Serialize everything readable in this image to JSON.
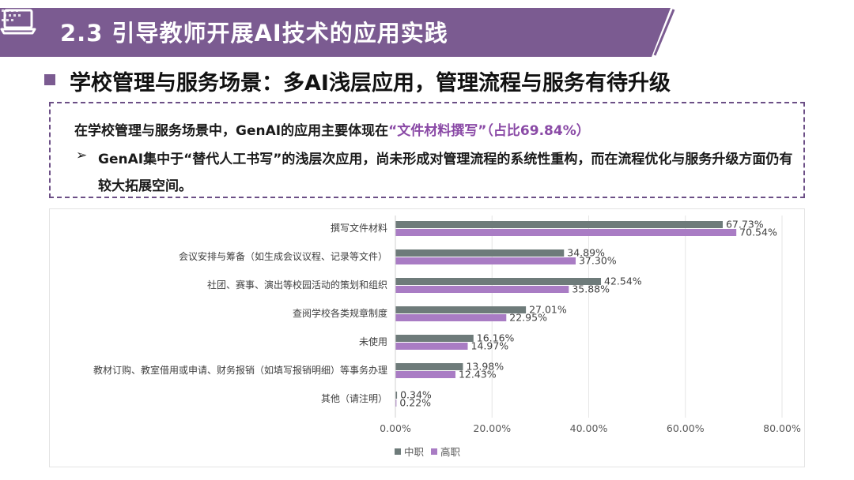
{
  "header": {
    "title": "2.3 引导教师开展AI技术的应用实践",
    "band_color": "#7b5b91",
    "icon": "laptop-icon"
  },
  "section": {
    "title": "学校管理与服务场景：多AI浅层应用，管理流程与服务有待升级",
    "bullet_color": "#7b5b91"
  },
  "summary": {
    "line1_prefix": "在学校管理与服务场景中，GenAI的应用主要体现在",
    "line1_highlight": "“文件材料撰写”（占比69.84%）",
    "bullet_arrow": "➢",
    "bullet_text": "GenAI集中于“替代人工书写”的浅层次应用，尚未形成对管理流程的系统性重构，而在流程优化与服务升级方面仍有较大拓展空间。",
    "highlight_color": "#8a4aa6"
  },
  "chart_data": {
    "type": "bar",
    "orientation": "horizontal",
    "categories": [
      "撰写文件材料",
      "会议安排与筹备（如生成会议议程、记录等文件）",
      "社团、赛事、演出等校园活动的策划和组织",
      "查阅学校各类规章制度",
      "未使用",
      "教材订购、教室借用或申请、财务报销（如填写报销明细）等事务办理",
      "其他（请注明）"
    ],
    "series": [
      {
        "name": "中职",
        "color": "#6e7b7a",
        "values": [
          67.73,
          34.89,
          42.54,
          27.01,
          16.16,
          13.98,
          0.34
        ],
        "labels": [
          "67.73%",
          "34.89%",
          "42.54%",
          "27.01%",
          "16.16%",
          "13.98%",
          "0.34%"
        ]
      },
      {
        "name": "高职",
        "color": "#a97cc4",
        "values": [
          70.54,
          37.3,
          35.88,
          22.95,
          14.97,
          12.43,
          0.22
        ],
        "labels": [
          "70.54%",
          "37.30%",
          "35.88%",
          "22.95%",
          "14.97%",
          "12.43%",
          "0.22%"
        ]
      }
    ],
    "xlim": [
      0,
      80
    ],
    "xticks": [
      0,
      20,
      40,
      60,
      80
    ],
    "xtick_labels": [
      "0.00%",
      "20.00%",
      "40.00%",
      "60.00%",
      "80.00%"
    ],
    "grid": true,
    "legend_position": "bottom-center",
    "title": "",
    "xlabel": "",
    "ylabel": ""
  }
}
